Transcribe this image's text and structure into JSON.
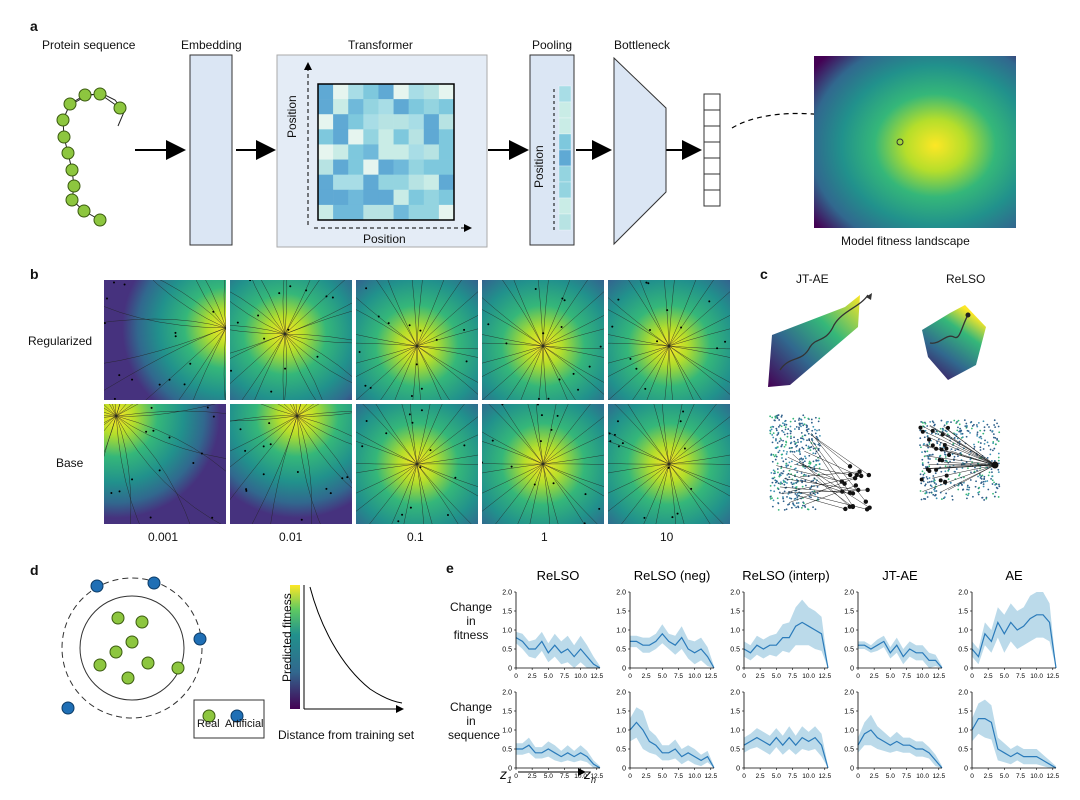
{
  "panel_a": {
    "letter": "a",
    "protein_sequence": "Protein sequence",
    "embedding": "Embedding",
    "transformer": "Transformer",
    "pooling": "Pooling",
    "bottleneck": "Bottleneck",
    "position_y": "Position",
    "position_x": "Position",
    "pooling_position": "Position",
    "landscape_caption": "Model fitness landscape"
  },
  "panel_b": {
    "letter": "b",
    "row_labels": [
      "Regularized",
      "Base"
    ],
    "column_labels": [
      "0.001",
      "0.01",
      "0.1",
      "1",
      "10"
    ]
  },
  "panel_c": {
    "letter": "c",
    "titles": [
      "JT-AE",
      "ReLSO"
    ]
  },
  "panel_d": {
    "letter": "d",
    "legend_real": "Real",
    "legend_artificial": "Artificial",
    "ylabel": "Predicted fitness",
    "xlabel": "Distance from training set",
    "real_color": "#8dc63f",
    "artificial_color": "#1f6fb5"
  },
  "panel_e": {
    "letter": "e",
    "row_labels": [
      "Change in\nfitness",
      "Change in\nsequence"
    ],
    "z_start": "z",
    "z_start_sub": "1",
    "z_end": "z",
    "z_end_sub": "n",
    "chart_data": [
      {
        "type": "line",
        "title": "ReLSO",
        "ylabel": "Change in fitness",
        "x": [
          0,
          1,
          2,
          3,
          4,
          5,
          6,
          7,
          8,
          9,
          10,
          11,
          12,
          13
        ],
        "values": [
          0.8,
          0.7,
          0.5,
          0.5,
          0.7,
          0.4,
          0.6,
          0.4,
          0.5,
          0.3,
          0.5,
          0.3,
          0.1,
          0.0
        ],
        "band": [
          0.15,
          0.2,
          0.2,
          0.25,
          0.25,
          0.25,
          0.3,
          0.3,
          0.35,
          0.3,
          0.35,
          0.3,
          0.2,
          0.05
        ],
        "ylim": [
          0,
          2.0
        ],
        "yticks": [
          "0",
          "0.5",
          "1.0",
          "1.5",
          "2.0"
        ],
        "xticks": [
          "0",
          "2.5",
          "5.0",
          "7.5",
          "10.0",
          "12.5"
        ]
      },
      {
        "type": "line",
        "title": "ReLSO (neg)",
        "ylabel": "Change in fitness",
        "x": [
          0,
          1,
          2,
          3,
          4,
          5,
          6,
          7,
          8,
          9,
          10,
          11,
          12,
          13
        ],
        "values": [
          0.7,
          0.7,
          0.6,
          0.6,
          0.7,
          0.9,
          0.7,
          0.6,
          0.8,
          0.5,
          0.4,
          0.5,
          0.3,
          0.0
        ],
        "band": [
          0.15,
          0.15,
          0.2,
          0.2,
          0.2,
          0.25,
          0.2,
          0.25,
          0.3,
          0.25,
          0.3,
          0.3,
          0.25,
          0.05
        ],
        "ylim": [
          0,
          2.0
        ],
        "yticks": [
          "0",
          "0.5",
          "1.0",
          "1.5",
          "2.0"
        ],
        "xticks": [
          "0",
          "2.5",
          "5.0",
          "7.5",
          "10.0",
          "12.5"
        ]
      },
      {
        "type": "line",
        "title": "ReLSO (interp)",
        "ylabel": "Change in fitness",
        "x": [
          0,
          1,
          2,
          3,
          4,
          5,
          6,
          7,
          8,
          9,
          10,
          11,
          12,
          13
        ],
        "values": [
          0.5,
          0.4,
          0.6,
          0.5,
          0.6,
          0.6,
          0.8,
          0.8,
          1.1,
          1.2,
          1.1,
          1.0,
          0.9,
          0.0
        ],
        "band": [
          0.2,
          0.2,
          0.25,
          0.25,
          0.25,
          0.3,
          0.35,
          0.4,
          0.5,
          0.6,
          0.5,
          0.5,
          0.45,
          0.05
        ],
        "ylim": [
          0,
          2.0
        ],
        "yticks": [
          "0",
          "0.5",
          "1.0",
          "1.5",
          "2.0"
        ],
        "xticks": [
          "0",
          "2.5",
          "5.0",
          "7.5",
          "10.0",
          "12.5"
        ]
      },
      {
        "type": "line",
        "title": "JT-AE",
        "ylabel": "Change in fitness",
        "x": [
          0,
          1,
          2,
          3,
          4,
          5,
          6,
          7,
          8,
          9,
          10,
          11,
          12,
          13
        ],
        "values": [
          0.6,
          0.6,
          0.5,
          0.6,
          0.7,
          0.4,
          0.6,
          0.3,
          0.5,
          0.4,
          0.4,
          0.2,
          0.2,
          0.0
        ],
        "band": [
          0.1,
          0.1,
          0.1,
          0.15,
          0.15,
          0.15,
          0.2,
          0.2,
          0.2,
          0.2,
          0.2,
          0.2,
          0.15,
          0.05
        ],
        "ylim": [
          0,
          2.0
        ],
        "yticks": [
          "0",
          "0.5",
          "1.0",
          "1.5",
          "2.0"
        ],
        "xticks": [
          "0",
          "2.5",
          "5.0",
          "7.5",
          "10.0",
          "12.5"
        ]
      },
      {
        "type": "line",
        "title": "AE",
        "ylabel": "Change in fitness",
        "x": [
          0,
          1,
          2,
          3,
          4,
          5,
          6,
          7,
          8,
          9,
          10,
          11,
          12,
          13
        ],
        "values": [
          0.5,
          0.3,
          0.9,
          0.7,
          1.2,
          0.9,
          1.2,
          1.0,
          1.1,
          1.3,
          1.4,
          1.4,
          1.2,
          0.0
        ],
        "band": [
          0.2,
          0.2,
          0.3,
          0.3,
          0.4,
          0.5,
          0.5,
          0.5,
          0.5,
          0.6,
          0.6,
          0.6,
          0.5,
          0.05
        ],
        "ylim": [
          0,
          2.0
        ],
        "yticks": [
          "0",
          "0.5",
          "1.0",
          "1.5",
          "2.0"
        ],
        "xticks": [
          "0",
          "2.5",
          "5.0",
          "7.5",
          "10.0",
          "12.5"
        ]
      },
      {
        "type": "line",
        "title": "",
        "ylabel": "Change in sequence",
        "x": [
          0,
          1,
          2,
          3,
          4,
          5,
          6,
          7,
          8,
          9,
          10,
          11,
          12,
          13
        ],
        "values": [
          0.5,
          0.5,
          0.6,
          0.4,
          0.4,
          0.5,
          0.4,
          0.3,
          0.4,
          0.3,
          0.4,
          0.3,
          0.1,
          0.0
        ],
        "band": [
          0.15,
          0.15,
          0.2,
          0.15,
          0.15,
          0.2,
          0.2,
          0.15,
          0.2,
          0.15,
          0.2,
          0.15,
          0.1,
          0.05
        ],
        "ylim": [
          0,
          2.0
        ],
        "yticks": [
          "0",
          "0.5",
          "1.0",
          "1.5",
          "2.0"
        ],
        "xticks": [
          "0",
          "2.5",
          "5.0",
          "7.5",
          "10.0",
          "12.5"
        ]
      },
      {
        "type": "line",
        "title": "",
        "ylabel": "Change in sequence",
        "x": [
          0,
          1,
          2,
          3,
          4,
          5,
          6,
          7,
          8,
          9,
          10,
          11,
          12,
          13
        ],
        "values": [
          1.0,
          1.2,
          1.0,
          0.7,
          0.6,
          0.4,
          0.4,
          0.5,
          0.3,
          0.4,
          0.3,
          0.2,
          0.3,
          0.0
        ],
        "band": [
          0.3,
          0.4,
          0.5,
          0.3,
          0.25,
          0.2,
          0.2,
          0.25,
          0.2,
          0.2,
          0.2,
          0.15,
          0.15,
          0.05
        ],
        "ylim": [
          0,
          2.0
        ],
        "yticks": [
          "0",
          "0.5",
          "1.0",
          "1.5",
          "2.0"
        ],
        "xticks": [
          "0",
          "2.5",
          "5.0",
          "7.5",
          "10.0",
          "12.5"
        ]
      },
      {
        "type": "line",
        "title": "",
        "ylabel": "Change in sequence",
        "x": [
          0,
          1,
          2,
          3,
          4,
          5,
          6,
          7,
          8,
          9,
          10,
          11,
          12,
          13
        ],
        "values": [
          0.6,
          0.7,
          0.8,
          0.7,
          0.6,
          0.8,
          0.6,
          0.8,
          0.6,
          0.8,
          0.7,
          0.8,
          0.6,
          0.0
        ],
        "band": [
          0.2,
          0.2,
          0.25,
          0.25,
          0.25,
          0.25,
          0.25,
          0.3,
          0.25,
          0.3,
          0.25,
          0.3,
          0.3,
          0.05
        ],
        "ylim": [
          0,
          2.0
        ],
        "yticks": [
          "0",
          "0.5",
          "1.0",
          "1.5",
          "2.0"
        ],
        "xticks": [
          "0",
          "2.5",
          "5.0",
          "7.5",
          "10.0",
          "12.5"
        ]
      },
      {
        "type": "line",
        "title": "",
        "ylabel": "Change in sequence",
        "x": [
          0,
          1,
          2,
          3,
          4,
          5,
          6,
          7,
          8,
          9,
          10,
          11,
          12,
          13
        ],
        "values": [
          0.6,
          0.9,
          1.0,
          0.8,
          0.7,
          0.6,
          0.7,
          0.6,
          0.6,
          0.5,
          0.5,
          0.4,
          0.2,
          0.0
        ],
        "band": [
          0.2,
          0.3,
          0.4,
          0.3,
          0.25,
          0.2,
          0.25,
          0.2,
          0.2,
          0.2,
          0.2,
          0.15,
          0.15,
          0.05
        ],
        "ylim": [
          0,
          2.0
        ],
        "yticks": [
          "0",
          "0.5",
          "1.0",
          "1.5",
          "2.0"
        ],
        "xticks": [
          "0",
          "2.5",
          "5.0",
          "7.5",
          "10.0",
          "12.5"
        ]
      },
      {
        "type": "line",
        "title": "",
        "ylabel": "Change in sequence",
        "x": [
          0,
          1,
          2,
          3,
          4,
          5,
          6,
          7,
          8,
          9,
          10,
          11,
          12,
          13
        ],
        "values": [
          1.0,
          1.3,
          1.3,
          1.2,
          0.5,
          0.4,
          0.3,
          0.4,
          0.3,
          0.3,
          0.3,
          0.2,
          0.1,
          0.0
        ],
        "band": [
          0.3,
          0.4,
          0.5,
          0.45,
          0.3,
          0.25,
          0.2,
          0.2,
          0.2,
          0.2,
          0.2,
          0.15,
          0.1,
          0.05
        ],
        "ylim": [
          0,
          2.0
        ],
        "yticks": [
          "0",
          "0.5",
          "1.0",
          "1.5",
          "2.0"
        ],
        "xticks": [
          "0",
          "2.5",
          "5.0",
          "7.5",
          "10.0",
          "12.5"
        ]
      }
    ]
  }
}
